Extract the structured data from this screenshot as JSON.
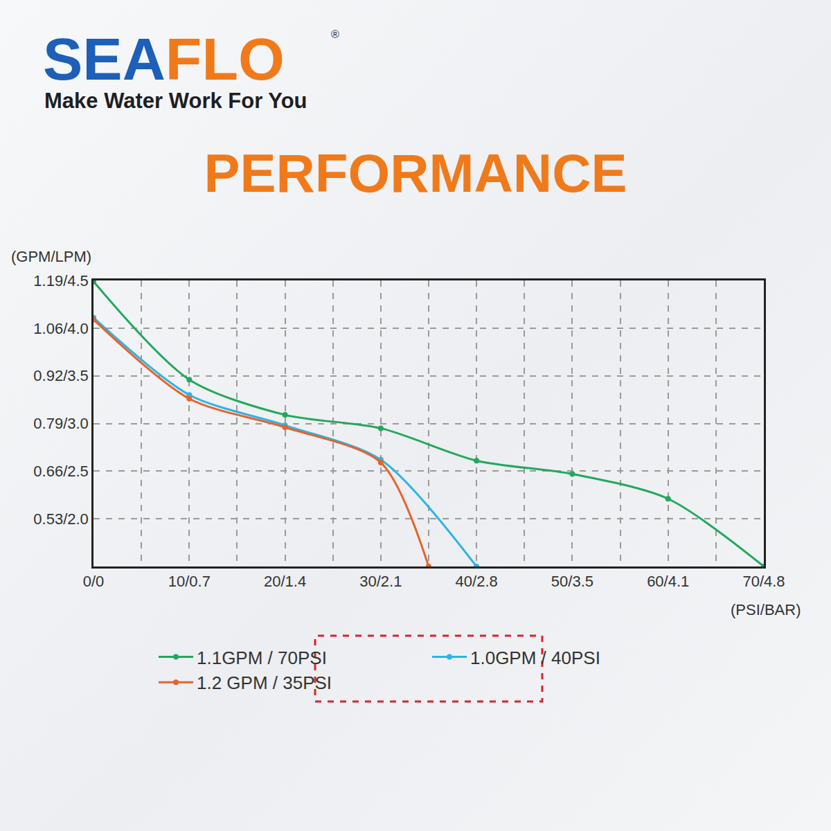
{
  "chart_data": {
    "type": "line",
    "title": "PERFORMANCE",
    "annotations": [
      "SEAFLO",
      "®",
      "Make Water Work For You"
    ],
    "x_label": "(PSI/BAR)",
    "y_label": "(GPM/LPM)",
    "xlim": [
      0,
      70
    ],
    "xticks": [
      {
        "value": 0,
        "label": "0/0"
      },
      {
        "value": 10,
        "label": "10/0.7"
      },
      {
        "value": 20,
        "label": "20/1.4"
      },
      {
        "value": 30,
        "label": "30/2.1"
      },
      {
        "value": 40,
        "label": "40/2.8"
      },
      {
        "value": 50,
        "label": "50/3.5"
      },
      {
        "value": 60,
        "label": "60/4.1"
      },
      {
        "value": 70,
        "label": "70/4.8"
      }
    ],
    "ylim": [
      1.5,
      4.5
    ],
    "yticks": [
      {
        "value": 2.0,
        "label": "0.53/2.0"
      },
      {
        "value": 2.5,
        "label": "0.66/2.5"
      },
      {
        "value": 3.0,
        "label": "0.79/3.0"
      },
      {
        "value": 3.5,
        "label": "0.92/3.5"
      },
      {
        "value": 4.0,
        "label": "1.06/4.0"
      },
      {
        "value": 4.5,
        "label": "1.19/4.5"
      }
    ],
    "grid": true,
    "legend": "bottom",
    "marker": "circle",
    "series": [
      {
        "name": "1.1GPM / 70PSI",
        "color": "#22a85e",
        "x": [
          0,
          10,
          20,
          30,
          40,
          50,
          60,
          70
        ],
        "values": [
          4.49,
          3.46,
          3.09,
          2.95,
          2.61,
          2.47,
          2.21,
          1.5
        ]
      },
      {
        "name": "1.0GPM / 40PSI",
        "color": "#2bb5e6",
        "x": [
          0,
          10,
          20,
          30,
          40
        ],
        "values": [
          4.11,
          3.3,
          2.98,
          2.62,
          1.5
        ]
      },
      {
        "name": "1.2 GPM / 35PSI",
        "color": "#e8622a",
        "x": [
          0,
          10,
          20,
          30,
          35
        ],
        "values": [
          4.09,
          3.26,
          2.96,
          2.59,
          1.5
        ]
      }
    ]
  }
}
